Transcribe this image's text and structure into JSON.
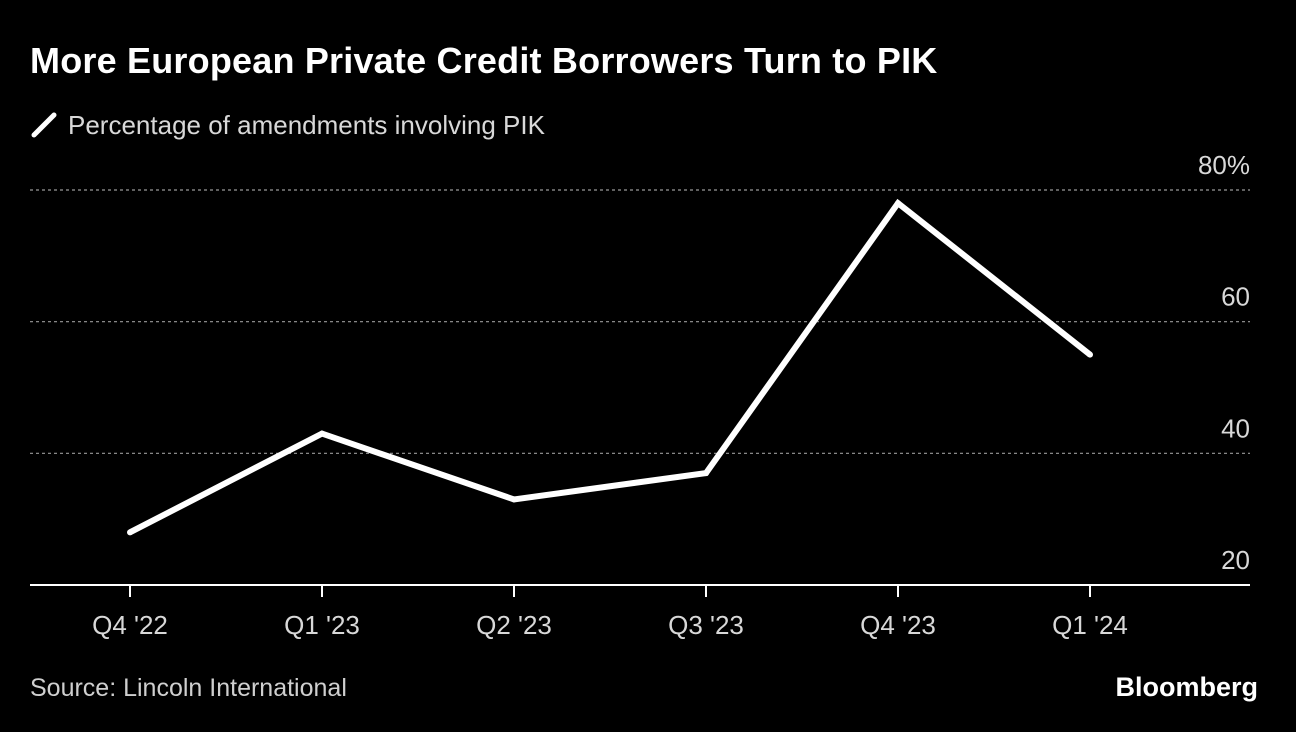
{
  "title": "More European Private Credit Borrowers Turn to PIK",
  "legend": {
    "label": "Percentage of amendments involving PIK",
    "icon": "line-swatch-icon"
  },
  "source": "Source: Lincoln International",
  "brand": "Bloomberg",
  "colors": {
    "background": "#000000",
    "line": "#ffffff",
    "grid": "#9a9a9a",
    "axis": "#ffffff",
    "text": "#d8d8d8"
  },
  "chart_data": {
    "type": "line",
    "categories": [
      "Q4 '22",
      "Q1 '23",
      "Q2 '23",
      "Q3 '23",
      "Q4 '23",
      "Q1 '24"
    ],
    "series": [
      {
        "name": "Percentage of amendments involving PIK",
        "values": [
          28,
          43,
          33,
          37,
          78,
          55
        ]
      }
    ],
    "ylim": [
      20,
      80
    ],
    "yticks": [
      20,
      40,
      60,
      80
    ],
    "ytick_labels": [
      "20",
      "40",
      "60",
      "80%"
    ],
    "y_axis_side": "right",
    "grid": "horizontal dashed",
    "legend_position": "top-left"
  }
}
